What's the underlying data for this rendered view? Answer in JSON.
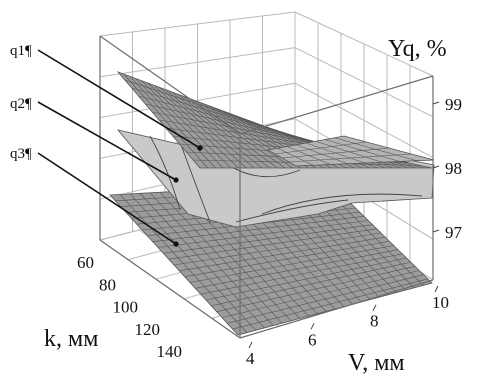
{
  "chart_data": {
    "type": "surface3d",
    "z_title": "Yq, %",
    "x_title": "V, мм",
    "y_title": "k, мм",
    "z_ticks": [
      "97",
      "98",
      "99"
    ],
    "x_ticks": [
      "4",
      "6",
      "8",
      "10"
    ],
    "y_ticks": [
      "60",
      "80",
      "100",
      "120",
      "140"
    ],
    "surfaces": [
      {
        "name": "q1¶",
        "color": "#9c9c9c",
        "grid": true
      },
      {
        "name": "q2¶",
        "color": "#c9c9c9",
        "grid": false
      },
      {
        "name": "q3¶",
        "color": "#a8a8a8",
        "grid": true
      }
    ],
    "colors": {
      "surface_dark": "#9c9c9c",
      "surface_light": "#c9c9c9",
      "mesh": "#555555"
    }
  }
}
